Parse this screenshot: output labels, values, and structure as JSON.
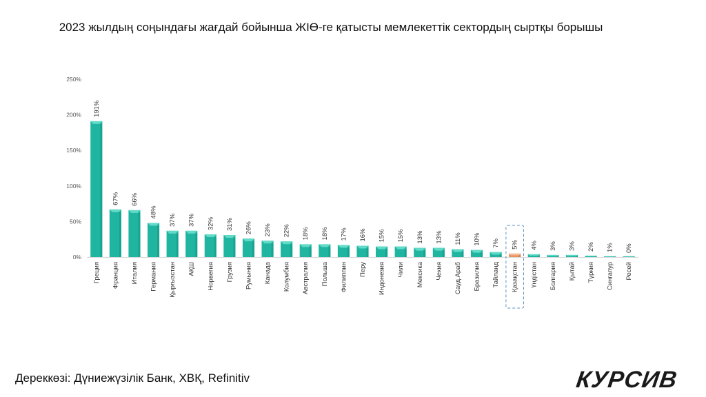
{
  "title": "2023 жылдың соңындағы жағдай бойынша ЖІӨ-ге қатысты мемлекеттік сектордың сыртқы борышы",
  "source": "Дереккөзі: Дүниежүзілік Банк, ХВҚ, Refinitiv",
  "logo": "КУРСИВ",
  "colors": {
    "bar": "#1fb5a0",
    "bar_dark": "#0f8f7e",
    "bar_light": "#6fe0cf",
    "highlight": "#e9905f",
    "highlight_dark": "#c96a3a",
    "highlight_light": "#f7c4a4",
    "highlight_box": "#5b8fbf",
    "axis_text": "#595959",
    "baseline": "#d9d9d9"
  },
  "chart_data": {
    "type": "bar",
    "title": "2023 жылдың соңындағы жағдай бойынша ЖІӨ-ге қатысты мемлекеттік сектордың сыртқы борышы",
    "categories": [
      "Греция",
      "Франция",
      "Италия",
      "Германия",
      "Қырғызстан",
      "АҚШ",
      "Норвегия",
      "Грузия",
      "Румыния",
      "Канада",
      "Колумбия",
      "Австралия",
      "Польша",
      "Филиппин",
      "Перу",
      "Индонезия",
      "Чили",
      "Мексика",
      "Чехия",
      "Сауд.Араб",
      "Бразилия",
      "Тайланд",
      "Қазақстан",
      "Үндістан",
      "Болгария",
      "Қытай",
      "Түркия",
      "Сингапур",
      "Ресей"
    ],
    "values": [
      191,
      67,
      66,
      48,
      37,
      37,
      32,
      31,
      26,
      23,
      22,
      18,
      18,
      17,
      16,
      15,
      15,
      13,
      13,
      11,
      10,
      7,
      5,
      4,
      3,
      3,
      2,
      1,
      0
    ],
    "data_labels": [
      "191%",
      "67%",
      "66%",
      "48%",
      "37%",
      "37%",
      "32%",
      "31%",
      "26%",
      "23%",
      "22%",
      "18%",
      "18%",
      "17%",
      "16%",
      "15%",
      "15%",
      "13%",
      "13%",
      "11%",
      "10%",
      "7%",
      "5%",
      "4%",
      "3%",
      "3%",
      "2%",
      "1%",
      "0%"
    ],
    "highlight_category": "Қазақстан",
    "ylim": [
      0,
      250
    ],
    "yticks": [
      0,
      50,
      100,
      150,
      200,
      250
    ],
    "ytick_labels": [
      "0%",
      "50%",
      "100%",
      "150%",
      "200%",
      "250%"
    ],
    "xlabel": "",
    "ylabel": "",
    "grid": false,
    "legend": "none"
  }
}
